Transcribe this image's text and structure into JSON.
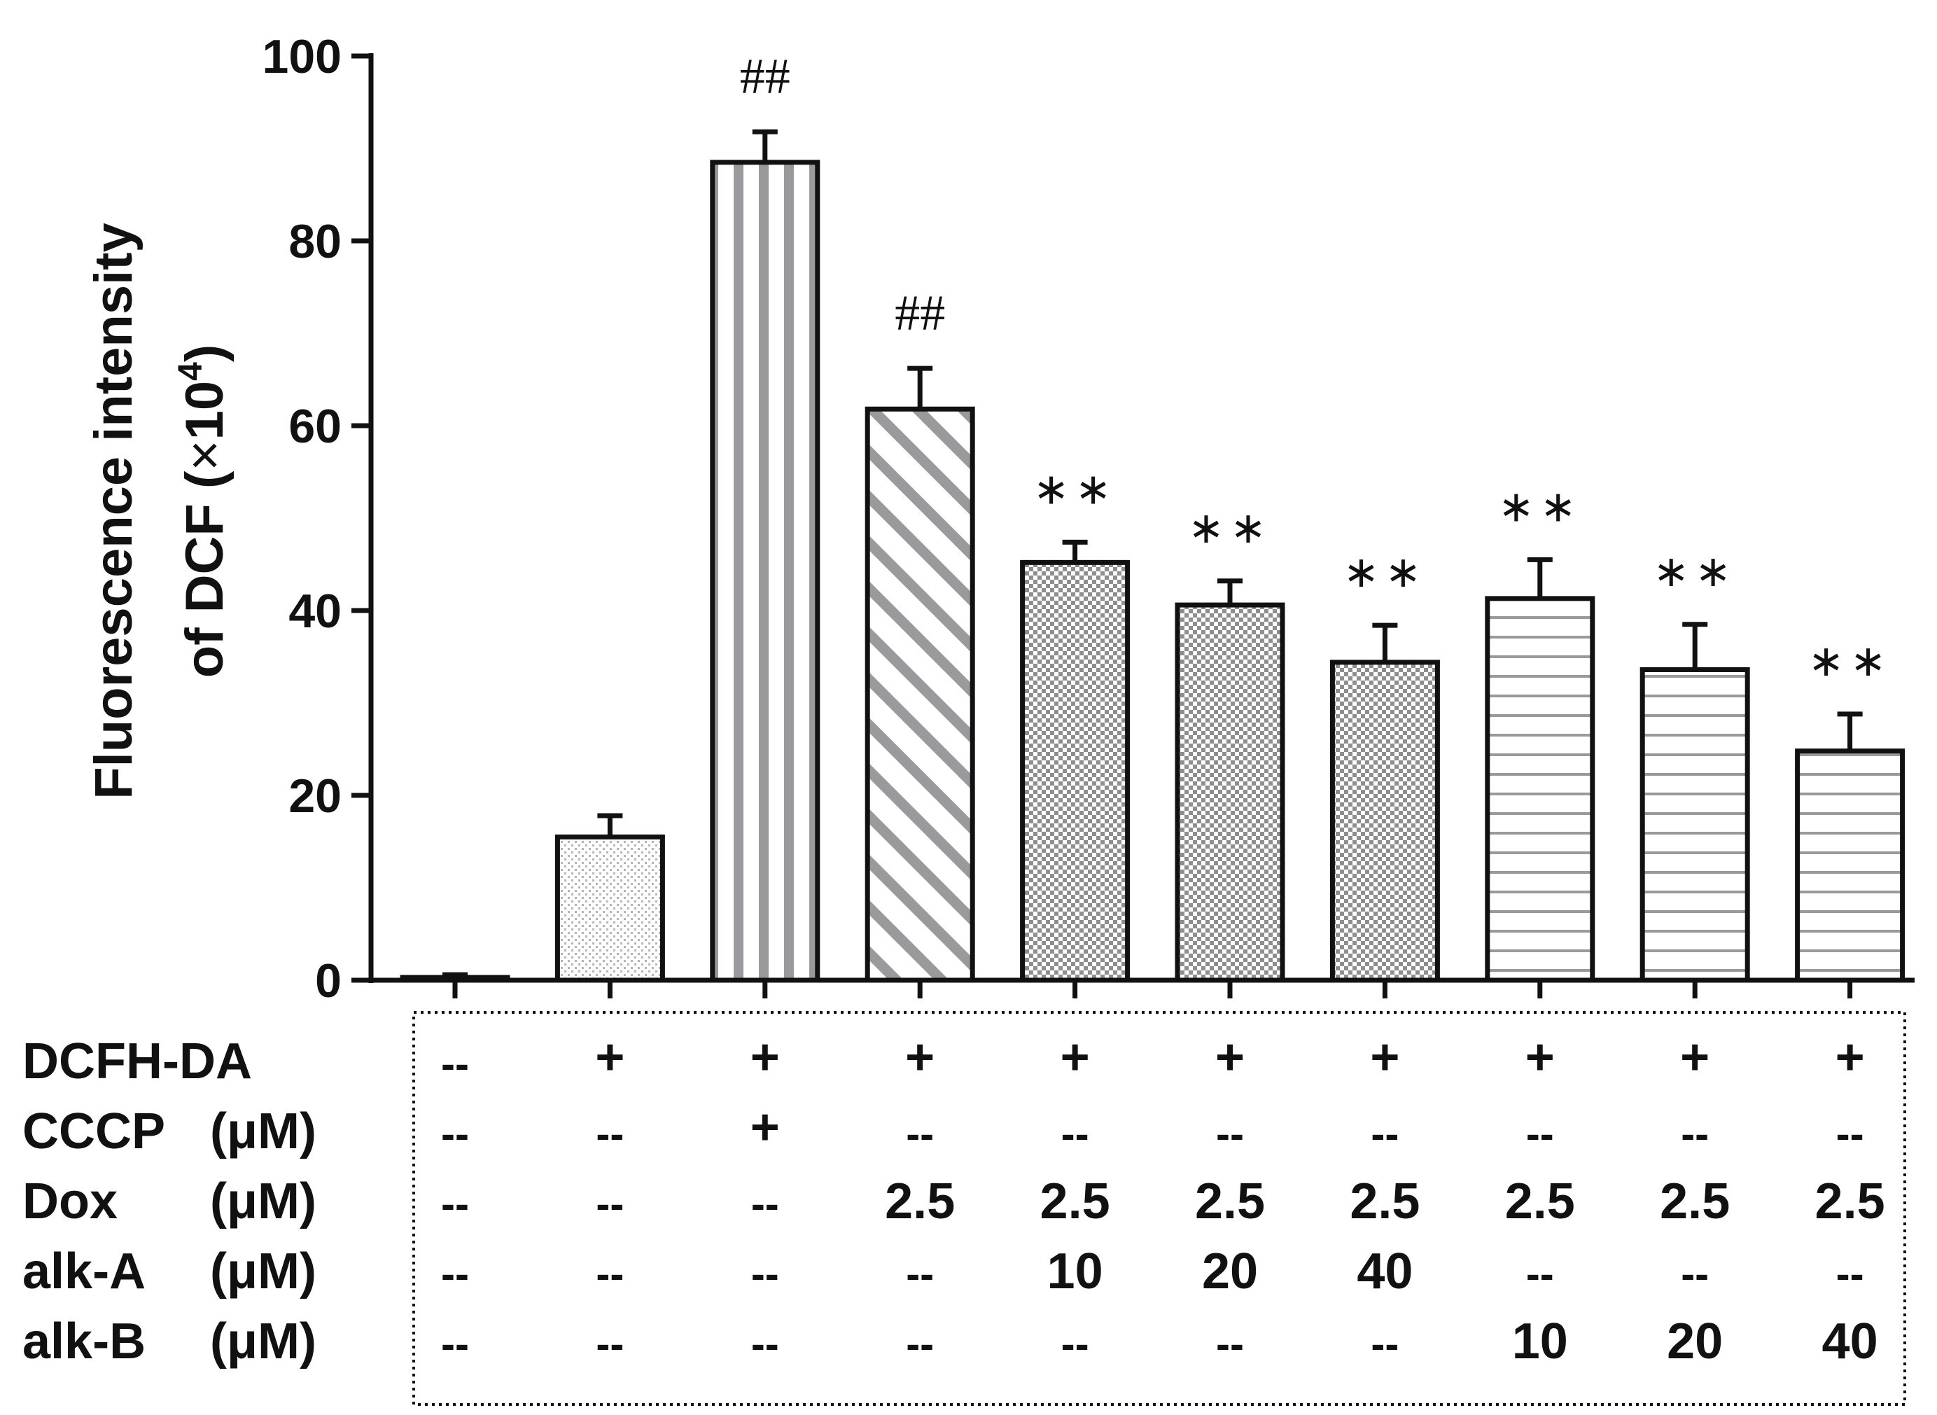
{
  "chart_data": {
    "type": "bar",
    "ylabel_line1": "Fluorescence intensity",
    "ylabel_line2_prefix": "of DCF (",
    "ylabel_times": "×",
    "ylabel_base": "10",
    "ylabel_exp": "4",
    "ylabel_suffix": ")",
    "ylim": [
      0,
      100
    ],
    "yticks": [
      "0",
      "20",
      "40",
      "60",
      "80",
      "100"
    ],
    "ytick_values": [
      0,
      20,
      40,
      60,
      80,
      100
    ],
    "values": [
      0.3,
      15.5,
      88.5,
      61.8,
      45.2,
      40.6,
      34.4,
      41.3,
      33.6,
      24.8
    ],
    "errors": [
      0.3,
      2.3,
      3.3,
      4.4,
      2.2,
      2.6,
      4.0,
      4.2,
      4.9,
      4.0
    ],
    "patterns": [
      "solid",
      "dots",
      "vlines",
      "diagonal",
      "checker",
      "checker",
      "checker",
      "hlines",
      "hlines",
      "hlines"
    ],
    "annotations": [
      "",
      "",
      "##",
      "##",
      "∗∗",
      "∗∗",
      "∗∗",
      "∗∗",
      "∗∗",
      "∗∗"
    ],
    "table": {
      "rows": [
        {
          "label": "DCFH-DA",
          "unit": "",
          "values": [
            "--",
            "+",
            "+",
            "+",
            "+",
            "+",
            "+",
            "+",
            "+",
            "+"
          ]
        },
        {
          "label": "CCCP",
          "unit": "(μM)",
          "values": [
            "--",
            "--",
            "+",
            "--",
            "--",
            "--",
            "--",
            "--",
            "--",
            "--"
          ]
        },
        {
          "label": "Dox",
          "unit": "(μM)",
          "values": [
            "--",
            "--",
            "--",
            "2.5",
            "2.5",
            "2.5",
            "2.5",
            "2.5",
            "2.5",
            "2.5"
          ]
        },
        {
          "label": "alk-A",
          "unit": "(μM)",
          "values": [
            "--",
            "--",
            "--",
            "--",
            "10",
            "20",
            "40",
            "--",
            "--",
            "--"
          ]
        },
        {
          "label": "alk-B",
          "unit": "(μM)",
          "values": [
            "--",
            "--",
            "--",
            "--",
            "--",
            "--",
            "--",
            "10",
            "20",
            "40"
          ]
        }
      ]
    }
  },
  "colors": {
    "ink": "#111111",
    "pattern_gray": "#9a9a9c",
    "background": "#ffffff"
  }
}
